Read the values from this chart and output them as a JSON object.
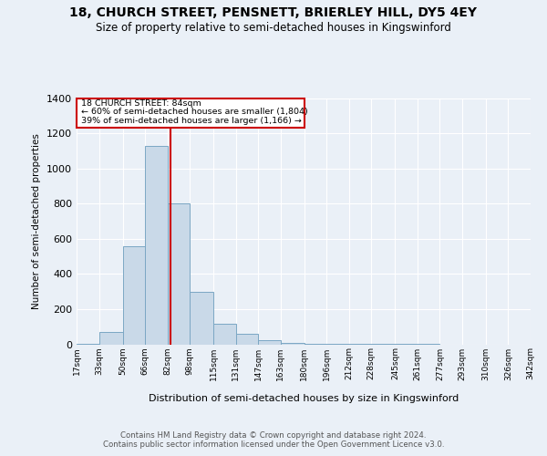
{
  "title_line1": "18, CHURCH STREET, PENSNETT, BRIERLEY HILL, DY5 4EY",
  "title_line2": "Size of property relative to semi-detached houses in Kingswinford",
  "xlabel": "Distribution of semi-detached houses by size in Kingswinford",
  "ylabel": "Number of semi-detached properties",
  "property_label": "18 CHURCH STREET: 84sqm",
  "pct_smaller": 60,
  "count_smaller": 1804,
  "pct_larger": 39,
  "count_larger": 1166,
  "bin_edges": [
    17,
    33,
    50,
    66,
    82,
    98,
    115,
    131,
    147,
    163,
    180,
    196,
    212,
    228,
    245,
    261,
    277,
    293,
    310,
    326,
    342
  ],
  "bin_counts": [
    2,
    70,
    555,
    1130,
    800,
    300,
    115,
    60,
    25,
    10,
    5,
    2,
    2,
    1,
    1,
    1,
    0,
    0,
    0,
    0
  ],
  "bar_color": "#c9d9e8",
  "bar_edge_color": "#7ba7c4",
  "vline_color": "#cc0000",
  "vline_x": 84,
  "box_color": "#cc0000",
  "ylim": [
    0,
    1400
  ],
  "yticks": [
    0,
    200,
    400,
    600,
    800,
    1000,
    1200,
    1400
  ],
  "tick_labels": [
    "17sqm",
    "33sqm",
    "50sqm",
    "66sqm",
    "82sqm",
    "98sqm",
    "115sqm",
    "131sqm",
    "147sqm",
    "163sqm",
    "180sqm",
    "196sqm",
    "212sqm",
    "228sqm",
    "245sqm",
    "261sqm",
    "277sqm",
    "293sqm",
    "310sqm",
    "326sqm",
    "342sqm"
  ],
  "footer_line1": "Contains HM Land Registry data © Crown copyright and database right 2024.",
  "footer_line2": "Contains public sector information licensed under the Open Government Licence v3.0.",
  "background_color": "#eaf0f7",
  "plot_bg_color": "#eaf0f7",
  "box_text1": "18 CHURCH STREET: 84sqm",
  "box_text2": "← 60% of semi-detached houses are smaller (1,804)",
  "box_text3": "39% of semi-detached houses are larger (1,166) →"
}
